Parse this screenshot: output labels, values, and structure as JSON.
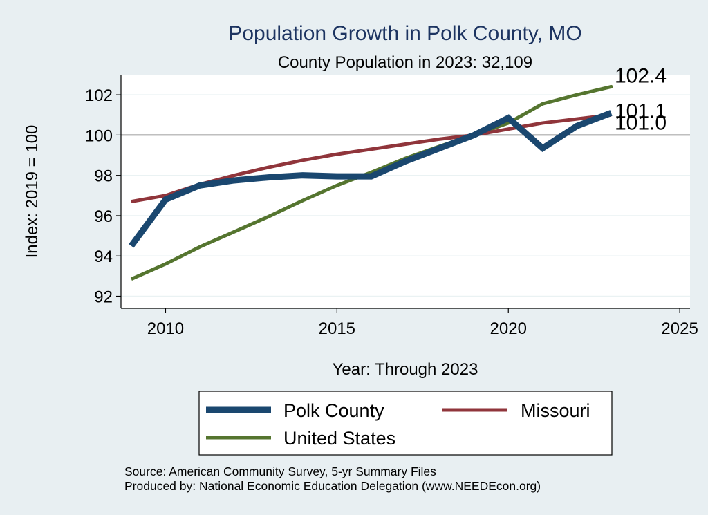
{
  "chart_data": {
    "type": "line",
    "title": "Population Growth in Polk County, MO",
    "subtitle": "County Population in 2023: 32,109",
    "xlabel": "Year: Through 2023",
    "ylabel": "Index: 2019 = 100",
    "xlim": [
      2008.7,
      2025.3
    ],
    "ylim": [
      91.4,
      103
    ],
    "x_ticks": [
      2010,
      2015,
      2020,
      2025
    ],
    "y_ticks": [
      92,
      94,
      96,
      98,
      100,
      102
    ],
    "x_tick_labels": [
      "2010",
      "2015",
      "2020",
      "2025"
    ],
    "y_tick_labels": [
      "92",
      "94",
      "96",
      "98",
      "100",
      "102"
    ],
    "reference_line": 100,
    "x": [
      2009,
      2010,
      2011,
      2012,
      2013,
      2014,
      2015,
      2016,
      2017,
      2018,
      2019,
      2020,
      2021,
      2022,
      2023
    ],
    "series": [
      {
        "name": "Polk  County",
        "color": "#1a476f",
        "values": [
          94.5,
          96.8,
          97.5,
          97.75,
          97.9,
          98.0,
          97.95,
          97.95,
          98.7,
          99.35,
          100.0,
          100.85,
          99.35,
          100.45,
          101.1
        ],
        "end_label": "101.1"
      },
      {
        "name": "Missouri",
        "color": "#90353b",
        "values": [
          96.7,
          97.0,
          97.55,
          98.0,
          98.4,
          98.75,
          99.05,
          99.3,
          99.55,
          99.8,
          100.0,
          100.3,
          100.6,
          100.8,
          101.0
        ],
        "end_label": "101.0"
      },
      {
        "name": "United States",
        "color": "#55752f",
        "values": [
          92.85,
          93.6,
          94.45,
          95.2,
          95.95,
          96.75,
          97.5,
          98.15,
          98.85,
          99.45,
          100.0,
          100.6,
          101.55,
          102.0,
          102.4
        ],
        "end_label": "102.4"
      }
    ]
  },
  "notes": {
    "source": "Source: American Community Survey, 5-yr Summary Files",
    "produced": "Produced by: National Economic Education Delegation (www.NEEDEcon.org)"
  }
}
